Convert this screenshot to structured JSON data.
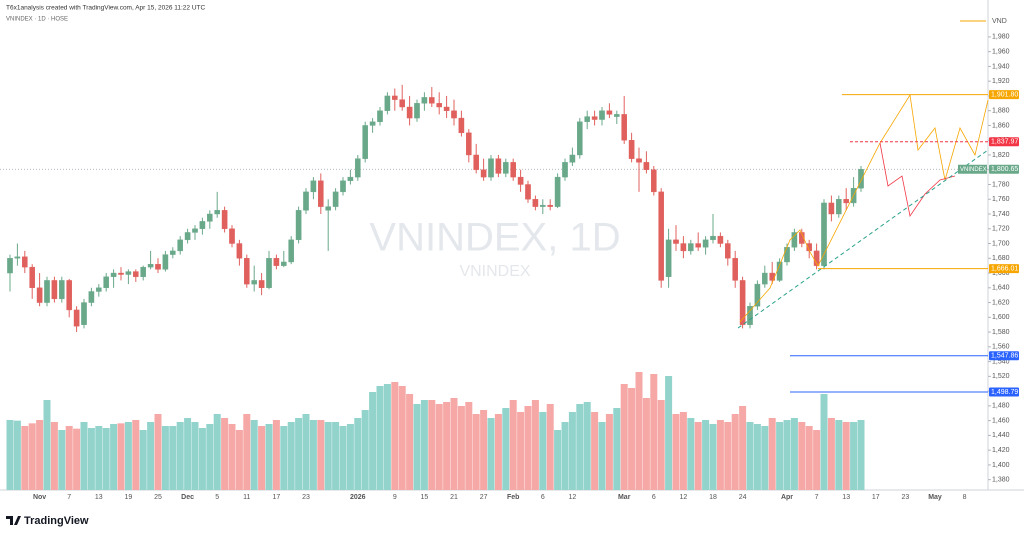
{
  "header": {
    "credit": "T6x1analysis created with TradingView.com, Apr 15, 2026 11:22 UTC",
    "symbol_line": "VNINDEX · 1D · HOSE"
  },
  "watermark": {
    "main": "VNINDEX, 1D",
    "sub": "VNINDEX"
  },
  "logo": "TradingView",
  "chart_data": {
    "type": "candlestick",
    "currency": "VND",
    "symbol": "VNINDEX",
    "last_price_label": "1,800.65",
    "up_color": "#6aa88a",
    "down_color": "#e0605d",
    "volume_up_color": "#92d3cc",
    "volume_down_color": "#f6a8a6",
    "grid": false,
    "ylim": [
      1366,
      2030
    ],
    "yticks": [
      {
        "value": 1380,
        "label": "1,380"
      },
      {
        "value": 1400,
        "label": "1,400"
      },
      {
        "value": 1420,
        "label": "1,420"
      },
      {
        "value": 1440,
        "label": "1,440"
      },
      {
        "value": 1460,
        "label": "1,460"
      },
      {
        "value": 1480,
        "label": "1,480"
      },
      {
        "value": 1500,
        "label": "1,500"
      },
      {
        "value": 1520,
        "label": "1,520"
      },
      {
        "value": 1540,
        "label": "1,540"
      },
      {
        "value": 1560,
        "label": "1,560"
      },
      {
        "value": 1580,
        "label": "1,580"
      },
      {
        "value": 1600,
        "label": "1,600"
      },
      {
        "value": 1620,
        "label": "1,620"
      },
      {
        "value": 1640,
        "label": "1,640"
      },
      {
        "value": 1660,
        "label": "1,660"
      },
      {
        "value": 1680,
        "label": "1,680"
      },
      {
        "value": 1700,
        "label": "1,700"
      },
      {
        "value": 1720,
        "label": "1,720"
      },
      {
        "value": 1740,
        "label": "1,740"
      },
      {
        "value": 1760,
        "label": "1,760"
      },
      {
        "value": 1780,
        "label": "1,780"
      },
      {
        "value": 1800,
        "label": "1,800"
      },
      {
        "value": 1820,
        "label": "1,820"
      },
      {
        "value": 1840,
        "label": "1,840"
      },
      {
        "value": 1860,
        "label": "1,860"
      },
      {
        "value": 1880,
        "label": "1,880"
      },
      {
        "value": 1900,
        "label": "1,900"
      },
      {
        "value": 1920,
        "label": "1,920"
      },
      {
        "value": 1940,
        "label": "1,940"
      },
      {
        "value": 1960,
        "label": "1,960"
      },
      {
        "value": 1980,
        "label": "1,980"
      }
    ],
    "levels": [
      {
        "value": 1901.8,
        "label": "1,901.80",
        "color": "#f7a600"
      },
      {
        "value": 1837.97,
        "label": "1,837.97",
        "color": "#f23645"
      },
      {
        "value": 1666.01,
        "label": "1,666.01",
        "color": "#f7a600"
      },
      {
        "value": 1547.86,
        "label": "1,547.86",
        "color": "#2962ff"
      },
      {
        "value": 1498.79,
        "label": "1,498.79",
        "color": "#2962ff"
      }
    ],
    "categories": [
      null,
      null,
      null,
      null,
      "Nov",
      null,
      null,
      null,
      "7",
      null,
      null,
      null,
      "13",
      null,
      null,
      null,
      "19",
      null,
      null,
      null,
      "25",
      null,
      null,
      null,
      "Dec",
      null,
      null,
      null,
      "5",
      null,
      null,
      null,
      "11",
      null,
      null,
      null,
      "17",
      null,
      null,
      null,
      "23",
      null,
      null,
      null,
      null,
      null,
      null,
      "2026",
      null,
      null,
      null,
      null,
      "9",
      null,
      null,
      null,
      "15",
      null,
      null,
      null,
      "21",
      null,
      null,
      null,
      "27",
      null,
      null,
      null,
      "Feb",
      null,
      null,
      null,
      "6",
      null,
      null,
      null,
      "12",
      null,
      null,
      null,
      null,
      null,
      null,
      "Mar",
      null,
      null,
      null,
      "6",
      null,
      null,
      null,
      "12",
      null,
      null,
      null,
      "18",
      null,
      null,
      null,
      "24",
      null,
      null,
      null,
      null,
      null,
      "Apr",
      null,
      null,
      null,
      "7",
      null,
      null,
      null,
      "13",
      null,
      null,
      null,
      "17",
      null,
      null,
      null,
      "23",
      null,
      null,
      null,
      "May",
      null,
      null,
      null,
      "8",
      null
    ],
    "open": [
      1660,
      1680,
      1682,
      1668,
      1640,
      1620,
      1650,
      1625,
      1650,
      1610,
      1590,
      1620,
      1635,
      1640,
      1655,
      1660,
      1658,
      1662,
      1655,
      1668,
      1672,
      1665,
      1685,
      1690,
      1705,
      1715,
      1720,
      1730,
      1740,
      1745,
      1720,
      1700,
      1680,
      1645,
      1650,
      1640,
      1680,
      1670,
      1675,
      1705,
      1745,
      1770,
      1785,
      1745,
      1750,
      1770,
      1785,
      1790,
      1815,
      1860,
      1865,
      1880,
      1900,
      1895,
      1885,
      1870,
      1890,
      1898,
      1890,
      1885,
      1880,
      1870,
      1850,
      1820,
      1800,
      1790,
      1815,
      1795,
      1810,
      1790,
      1780,
      1760,
      1750,
      1752,
      1750,
      1790,
      1810,
      1820,
      1865,
      1872,
      1868,
      1880,
      1872,
      1875,
      1840,
      1815,
      1810,
      1800,
      1770,
      1655,
      1705,
      1700,
      1690,
      1700,
      1695,
      1705,
      1710,
      1700,
      1680,
      1650,
      1590,
      1615,
      1645,
      1660,
      1650,
      1675,
      1695,
      1715,
      1700,
      1690,
      1670,
      1755,
      1740,
      1760,
      1755,
      1775,
      null,
      null,
      null,
      null,
      null,
      null,
      null,
      null,
      null,
      null,
      null,
      null,
      null,
      null,
      null
    ],
    "high": [
      1685,
      1700,
      1690,
      1672,
      1660,
      1655,
      1655,
      1655,
      1652,
      1615,
      1625,
      1640,
      1645,
      1660,
      1665,
      1668,
      1665,
      1665,
      1670,
      1690,
      1680,
      1690,
      1695,
      1710,
      1720,
      1725,
      1735,
      1745,
      1770,
      1750,
      1725,
      1705,
      1685,
      1670,
      1660,
      1690,
      1685,
      1690,
      1710,
      1750,
      1775,
      1790,
      1795,
      1760,
      1775,
      1790,
      1800,
      1820,
      1865,
      1870,
      1885,
      1905,
      1910,
      1915,
      1900,
      1895,
      1905,
      1912,
      1905,
      1900,
      1895,
      1880,
      1855,
      1835,
      1815,
      1820,
      1820,
      1815,
      1815,
      1800,
      1785,
      1765,
      1760,
      1760,
      1795,
      1815,
      1830,
      1870,
      1880,
      1880,
      1885,
      1890,
      1880,
      1900,
      1850,
      1830,
      1825,
      1805,
      1775,
      1720,
      1725,
      1710,
      1705,
      1715,
      1710,
      1740,
      1715,
      1705,
      1690,
      1655,
      1620,
      1650,
      1670,
      1675,
      1680,
      1700,
      1720,
      1720,
      1705,
      1700,
      1760,
      1765,
      1765,
      1775,
      1790,
      1805,
      null,
      null,
      null,
      null,
      null,
      null,
      null,
      null,
      null,
      null,
      null,
      null,
      null,
      null,
      null
    ],
    "low": [
      1635,
      1670,
      1660,
      1625,
      1615,
      1615,
      1620,
      1620,
      1600,
      1580,
      1585,
      1615,
      1628,
      1635,
      1640,
      1650,
      1645,
      1648,
      1650,
      1665,
      1660,
      1662,
      1680,
      1685,
      1700,
      1705,
      1712,
      1720,
      1735,
      1715,
      1695,
      1670,
      1640,
      1635,
      1630,
      1638,
      1665,
      1668,
      1672,
      1700,
      1740,
      1760,
      1740,
      1690,
      1745,
      1765,
      1780,
      1785,
      1810,
      1850,
      1860,
      1875,
      1880,
      1880,
      1860,
      1865,
      1880,
      1885,
      1875,
      1870,
      1860,
      1845,
      1810,
      1795,
      1785,
      1785,
      1790,
      1790,
      1785,
      1770,
      1755,
      1745,
      1740,
      1745,
      1748,
      1785,
      1805,
      1815,
      1855,
      1860,
      1860,
      1870,
      1862,
      1835,
      1810,
      1770,
      1795,
      1765,
      1640,
      1640,
      1690,
      1680,
      1685,
      1690,
      1685,
      1700,
      1695,
      1670,
      1640,
      1585,
      1585,
      1610,
      1640,
      1645,
      1648,
      1670,
      1690,
      1695,
      1680,
      1665,
      1665,
      1730,
      1735,
      1745,
      1750,
      1770,
      null,
      null,
      null,
      null,
      null,
      null,
      null,
      null,
      null,
      null,
      null,
      null,
      null,
      null,
      null
    ],
    "close": [
      1680,
      1682,
      1668,
      1640,
      1620,
      1650,
      1625,
      1650,
      1610,
      1588,
      1620,
      1635,
      1640,
      1655,
      1660,
      1658,
      1662,
      1655,
      1668,
      1672,
      1665,
      1685,
      1690,
      1705,
      1715,
      1720,
      1730,
      1740,
      1745,
      1720,
      1700,
      1680,
      1645,
      1650,
      1640,
      1680,
      1670,
      1675,
      1705,
      1745,
      1770,
      1785,
      1750,
      1750,
      1770,
      1785,
      1790,
      1815,
      1860,
      1865,
      1880,
      1900,
      1895,
      1885,
      1870,
      1890,
      1898,
      1890,
      1885,
      1880,
      1870,
      1850,
      1820,
      1800,
      1790,
      1815,
      1795,
      1810,
      1790,
      1780,
      1760,
      1750,
      1752,
      1750,
      1790,
      1810,
      1820,
      1865,
      1872,
      1868,
      1880,
      1875,
      1875,
      1840,
      1815,
      1810,
      1800,
      1770,
      1650,
      1705,
      1700,
      1690,
      1700,
      1695,
      1705,
      1710,
      1700,
      1680,
      1650,
      1590,
      1615,
      1645,
      1660,
      1650,
      1675,
      1695,
      1715,
      1700,
      1690,
      1670,
      1755,
      1740,
      1760,
      1755,
      1775,
      1800.65,
      null,
      null,
      null,
      null,
      null,
      null,
      null,
      null,
      null,
      null,
      null,
      null,
      null,
      null,
      null
    ],
    "volume": [
      1050,
      1040,
      960,
      1000,
      1050,
      1350,
      1020,
      900,
      960,
      920,
      1020,
      930,
      960,
      930,
      990,
      1000,
      1020,
      1050,
      900,
      1020,
      1140,
      960,
      960,
      1020,
      1080,
      1020,
      930,
      990,
      1140,
      1080,
      990,
      900,
      1140,
      1050,
      960,
      990,
      1050,
      960,
      1020,
      1080,
      1140,
      1050,
      1050,
      1020,
      1020,
      960,
      990,
      1080,
      1200,
      1470,
      1560,
      1590,
      1620,
      1560,
      1440,
      1290,
      1350,
      1350,
      1290,
      1320,
      1380,
      1260,
      1320,
      1140,
      1200,
      1080,
      1140,
      1230,
      1350,
      1170,
      1260,
      1350,
      1170,
      1290,
      900,
      1020,
      1170,
      1290,
      1320,
      1170,
      1020,
      1140,
      1230,
      1590,
      1530,
      1770,
      1380,
      1740,
      1350,
      1710,
      1140,
      1170,
      1080,
      1020,
      1050,
      990,
      1050,
      1020,
      1140,
      1260,
      1020,
      990,
      960,
      1080,
      1020,
      1050,
      1080,
      1020,
      960,
      900,
      1440,
      1080,
      1050,
      1020,
      1020,
      1050,
      null,
      null,
      null,
      null,
      null,
      null,
      null,
      null,
      null,
      null,
      null,
      null,
      null,
      null,
      null
    ]
  }
}
